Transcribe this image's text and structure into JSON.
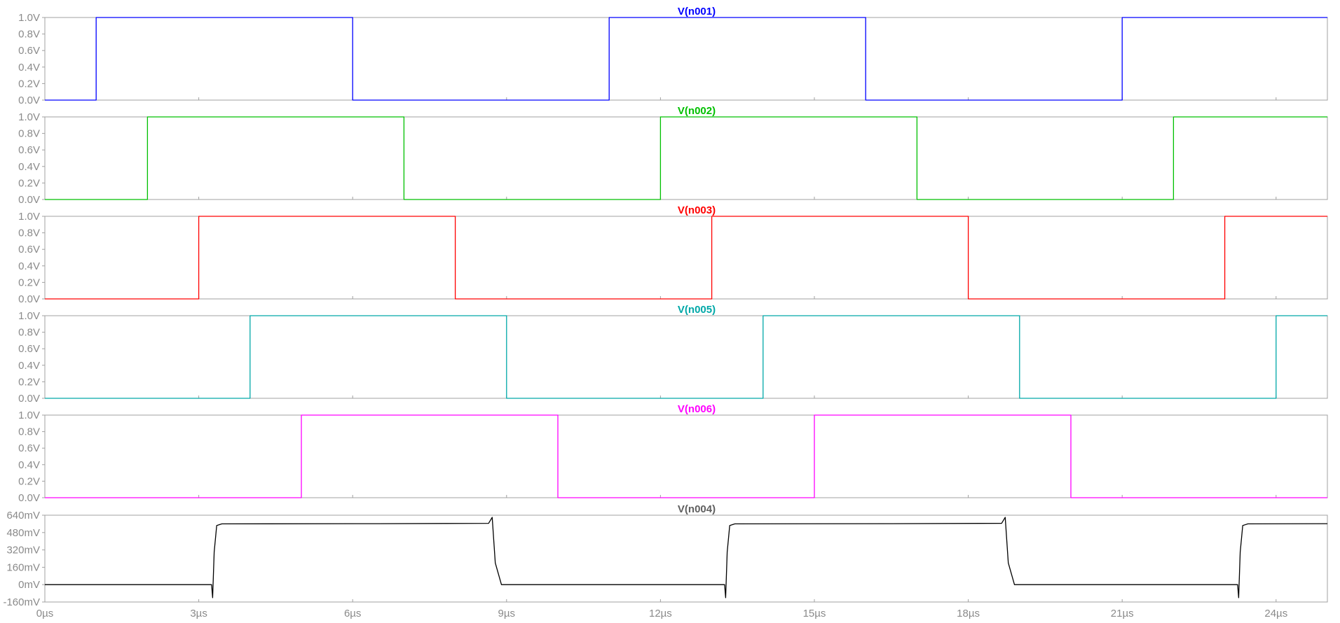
{
  "chart_data": {
    "type": "line",
    "x_tick_labels": [
      "0µs",
      "3µs",
      "6µs",
      "9µs",
      "12µs",
      "15µs",
      "18µs",
      "21µs",
      "24µs"
    ],
    "x_ticks_us": [
      0,
      3,
      6,
      9,
      12,
      15,
      18,
      21,
      24
    ],
    "xlim_us": [
      0,
      25
    ],
    "grid": false,
    "panels": [
      {
        "title": "V(n001)",
        "color": "#0000ff",
        "unit": "V",
        "ylim": [
          0,
          1.0
        ],
        "y_ticks": [
          0,
          0.2,
          0.4,
          0.6,
          0.8,
          1.0
        ],
        "y_tick_labels": [
          "0.0V",
          "0.2V",
          "0.4V",
          "0.6V",
          "0.8V",
          "1.0V"
        ],
        "x_us": [
          0,
          1,
          1,
          6,
          6,
          11,
          11,
          16,
          16,
          21,
          21,
          25
        ],
        "y": [
          0,
          0,
          1,
          1,
          0,
          0,
          1,
          1,
          0,
          0,
          1,
          1
        ]
      },
      {
        "title": "V(n002)",
        "color": "#00c000",
        "unit": "V",
        "ylim": [
          0,
          1.0
        ],
        "y_ticks": [
          0,
          0.2,
          0.4,
          0.6,
          0.8,
          1.0
        ],
        "y_tick_labels": [
          "0.0V",
          "0.2V",
          "0.4V",
          "0.6V",
          "0.8V",
          "1.0V"
        ],
        "x_us": [
          0,
          2,
          2,
          7,
          7,
          12,
          12,
          17,
          17,
          22,
          22,
          25
        ],
        "y": [
          0,
          0,
          1,
          1,
          0,
          0,
          1,
          1,
          0,
          0,
          1,
          1
        ]
      },
      {
        "title": "V(n003)",
        "color": "#ff0000",
        "unit": "V",
        "ylim": [
          0,
          1.0
        ],
        "y_ticks": [
          0,
          0.2,
          0.4,
          0.6,
          0.8,
          1.0
        ],
        "y_tick_labels": [
          "0.0V",
          "0.2V",
          "0.4V",
          "0.6V",
          "0.8V",
          "1.0V"
        ],
        "x_us": [
          0,
          3,
          3,
          8,
          8,
          13,
          13,
          18,
          18,
          23,
          23,
          25
        ],
        "y": [
          0,
          0,
          1,
          1,
          0,
          0,
          1,
          1,
          0,
          0,
          1,
          1
        ]
      },
      {
        "title": "V(n005)",
        "color": "#00a8a8",
        "unit": "V",
        "ylim": [
          0,
          1.0
        ],
        "y_ticks": [
          0,
          0.2,
          0.4,
          0.6,
          0.8,
          1.0
        ],
        "y_tick_labels": [
          "0.0V",
          "0.2V",
          "0.4V",
          "0.6V",
          "0.8V",
          "1.0V"
        ],
        "x_us": [
          0,
          4,
          4,
          9,
          9,
          14,
          14,
          19,
          19,
          24,
          24,
          25
        ],
        "y": [
          0,
          0,
          1,
          1,
          0,
          0,
          1,
          1,
          0,
          0,
          1,
          1
        ]
      },
      {
        "title": "V(n006)",
        "color": "#ff00ff",
        "unit": "V",
        "ylim": [
          0,
          1.0
        ],
        "y_ticks": [
          0,
          0.2,
          0.4,
          0.6,
          0.8,
          1.0
        ],
        "y_tick_labels": [
          "0.0V",
          "0.2V",
          "0.4V",
          "0.6V",
          "0.8V",
          "1.0V"
        ],
        "x_us": [
          0,
          5,
          5,
          10,
          10,
          15,
          15,
          20,
          20,
          25
        ],
        "y": [
          0,
          0,
          1,
          1,
          0,
          0,
          1,
          1,
          0,
          0
        ]
      },
      {
        "title": "V(n004)",
        "color": "#000000",
        "title_color": "#606060",
        "unit": "mV",
        "ylim": [
          -160,
          640
        ],
        "y_ticks": [
          -160,
          0,
          160,
          320,
          480,
          640
        ],
        "y_tick_labels": [
          "-160mV",
          "0mV",
          "160mV",
          "320mV",
          "480mV",
          "640mV"
        ],
        "x_us": [
          0,
          3.25,
          3.27,
          3.3,
          3.35,
          3.45,
          6.5,
          8.65,
          8.72,
          8.78,
          8.9,
          13.25,
          13.27,
          13.3,
          13.35,
          13.45,
          16.5,
          18.65,
          18.72,
          18.78,
          18.9,
          23.25,
          23.27,
          23.3,
          23.35,
          23.45,
          25
        ],
        "y": [
          0,
          0,
          -120,
          300,
          545,
          560,
          562,
          565,
          620,
          200,
          0,
          0,
          -120,
          300,
          545,
          560,
          562,
          565,
          620,
          200,
          0,
          0,
          -120,
          300,
          545,
          560,
          562
        ]
      }
    ]
  }
}
